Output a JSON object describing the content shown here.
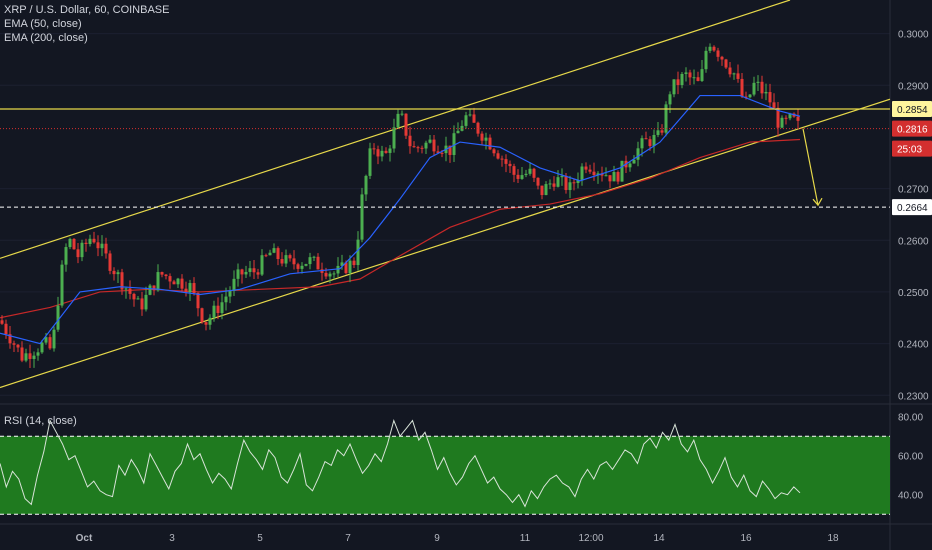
{
  "header": {
    "symbol_line": "XRP / U.S. Dollar, 60, COINBASE",
    "indicators": [
      "EMA (50, close)",
      "EMA (200, close)"
    ]
  },
  "rsi_panel": {
    "title": "RSI (14, close)"
  },
  "colors": {
    "background": "#131722",
    "up_candle": "#4caf50",
    "down_candle": "#e53935",
    "ema50": "#2962ff",
    "ema200": "#c62828",
    "channel": "#e6d84a",
    "rsi_fill": "#1f7a1f",
    "rsi_line": "#d8e3d8",
    "price_tag_red": "#d32f2f",
    "price_tag_yellow": "#fff59d"
  },
  "chart_data": [
    {
      "type": "candlestick",
      "title": "XRP / U.S. Dollar, 60, COINBASE",
      "x_tick_labels": [
        "Oct",
        "3",
        "5",
        "7",
        "9",
        "11",
        "12:00",
        "14",
        "16",
        "18"
      ],
      "y_tick_labels": [
        "0.3000",
        "0.2900",
        "0.2854",
        "0.2816",
        "0.2700",
        "0.2664",
        "0.2600",
        "0.2500",
        "0.2400",
        "0.2300"
      ],
      "ylim": [
        0.2285,
        0.3065
      ],
      "price_tags": [
        {
          "label": "0.2854",
          "value": 0.2854,
          "style": "yellow-line"
        },
        {
          "label": "0.2816",
          "value": 0.2816,
          "style": "red-current"
        },
        {
          "label": "25:03",
          "style": "countdown"
        },
        {
          "label": "0.2664",
          "value": 0.2664,
          "style": "white-dashed"
        }
      ],
      "channel": {
        "upper": [
          [
            0,
            0.2565
          ],
          [
            790,
            0.3065
          ]
        ],
        "lower": [
          [
            0,
            0.2315
          ],
          [
            890,
            0.2873
          ]
        ]
      },
      "projection_arrow": {
        "from": [
          0,
          0.2816
        ],
        "to": [
          0,
          0.2664
        ]
      },
      "price_path": [
        [
          0,
          0.2445
        ],
        [
          22,
          0.2375
        ],
        [
          45,
          0.24
        ],
        [
          52,
          0.2385
        ],
        [
          60,
          0.252
        ],
        [
          68,
          0.2605
        ],
        [
          78,
          0.257
        ],
        [
          92,
          0.261
        ],
        [
          105,
          0.257
        ],
        [
          120,
          0.2525
        ],
        [
          140,
          0.247
        ],
        [
          160,
          0.2535
        ],
        [
          175,
          0.2525
        ],
        [
          190,
          0.251
        ],
        [
          205,
          0.244
        ],
        [
          222,
          0.248
        ],
        [
          240,
          0.2535
        ],
        [
          255,
          0.254
        ],
        [
          270,
          0.2575
        ],
        [
          290,
          0.2555
        ],
        [
          310,
          0.256
        ],
        [
          335,
          0.2535
        ],
        [
          355,
          0.256
        ],
        [
          362,
          0.268
        ],
        [
          372,
          0.2785
        ],
        [
          385,
          0.276
        ],
        [
          400,
          0.2845
        ],
        [
          412,
          0.2775
        ],
        [
          430,
          0.279
        ],
        [
          450,
          0.2775
        ],
        [
          465,
          0.284
        ],
        [
          485,
          0.28
        ],
        [
          500,
          0.2765
        ],
        [
          515,
          0.2725
        ],
        [
          530,
          0.273
        ],
        [
          540,
          0.269
        ],
        [
          555,
          0.272
        ],
        [
          570,
          0.27
        ],
        [
          585,
          0.275
        ],
        [
          600,
          0.2735
        ],
        [
          615,
          0.272
        ],
        [
          630,
          0.276
        ],
        [
          645,
          0.279
        ],
        [
          660,
          0.28
        ],
        [
          670,
          0.289
        ],
        [
          685,
          0.292
        ],
        [
          700,
          0.29
        ],
        [
          708,
          0.299
        ],
        [
          720,
          0.296
        ],
        [
          735,
          0.292
        ],
        [
          745,
          0.286
        ],
        [
          755,
          0.2905
        ],
        [
          770,
          0.287
        ],
        [
          780,
          0.282
        ],
        [
          792,
          0.2835
        ],
        [
          800,
          0.2816
        ]
      ],
      "ema50_path": [
        [
          0,
          0.242
        ],
        [
          40,
          0.24
        ],
        [
          80,
          0.25
        ],
        [
          120,
          0.251
        ],
        [
          160,
          0.2505
        ],
        [
          200,
          0.2495
        ],
        [
          240,
          0.2505
        ],
        [
          290,
          0.2535
        ],
        [
          340,
          0.2545
        ],
        [
          370,
          0.2605
        ],
        [
          400,
          0.268
        ],
        [
          430,
          0.276
        ],
        [
          460,
          0.279
        ],
        [
          500,
          0.278
        ],
        [
          540,
          0.274
        ],
        [
          580,
          0.2715
        ],
        [
          620,
          0.274
        ],
        [
          660,
          0.279
        ],
        [
          700,
          0.288
        ],
        [
          740,
          0.288
        ],
        [
          780,
          0.285
        ],
        [
          800,
          0.284
        ]
      ],
      "ema200_path": [
        [
          0,
          0.245
        ],
        [
          50,
          0.247
        ],
        [
          100,
          0.25
        ],
        [
          150,
          0.2505
        ],
        [
          200,
          0.25
        ],
        [
          260,
          0.2505
        ],
        [
          320,
          0.251
        ],
        [
          360,
          0.2525
        ],
        [
          400,
          0.257
        ],
        [
          450,
          0.2625
        ],
        [
          500,
          0.266
        ],
        [
          550,
          0.267
        ],
        [
          600,
          0.269
        ],
        [
          650,
          0.272
        ],
        [
          700,
          0.276
        ],
        [
          750,
          0.279
        ],
        [
          800,
          0.2795
        ]
      ]
    },
    {
      "type": "line",
      "title": "RSI (14, close)",
      "y_tick_labels": [
        "80.00",
        "60.00",
        "40.00"
      ],
      "ylim": [
        26,
        86
      ],
      "band": [
        30,
        70
      ],
      "values": [
        56,
        44,
        52,
        48,
        38,
        35,
        50,
        62,
        78,
        72,
        66,
        58,
        60,
        52,
        44,
        47,
        42,
        40,
        39,
        55,
        50,
        58,
        53,
        46,
        61,
        55,
        49,
        43,
        52,
        56,
        66,
        58,
        61,
        53,
        46,
        51,
        48,
        43,
        56,
        68,
        62,
        58,
        53,
        63,
        59,
        49,
        46,
        53,
        61,
        45,
        42,
        49,
        57,
        55,
        63,
        60,
        66,
        58,
        51,
        55,
        61,
        57,
        66,
        78,
        70,
        74,
        78,
        68,
        72,
        63,
        53,
        59,
        51,
        45,
        49,
        56,
        60,
        53,
        46,
        49,
        43,
        40,
        36,
        40,
        34,
        42,
        38,
        44,
        48,
        50,
        46,
        44,
        39,
        48,
        53,
        48,
        55,
        57,
        53,
        58,
        63,
        61,
        56,
        66,
        69,
        64,
        72,
        68,
        76,
        66,
        62,
        68,
        58,
        53,
        46,
        52,
        59,
        49,
        44,
        50,
        42,
        39,
        47,
        43,
        38,
        41,
        40,
        44,
        41
      ]
    }
  ]
}
